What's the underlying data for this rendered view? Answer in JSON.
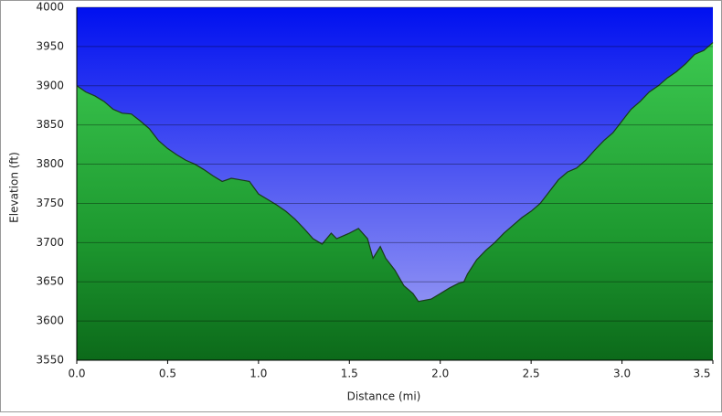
{
  "chart_data": {
    "type": "area",
    "xlabel": "Distance (mi)",
    "ylabel": "Elevation (ft)",
    "x": [
      0,
      0.05,
      0.1,
      0.15,
      0.2,
      0.25,
      0.3,
      0.35,
      0.4,
      0.45,
      0.5,
      0.55,
      0.6,
      0.65,
      0.7,
      0.75,
      0.8,
      0.85,
      0.9,
      0.95,
      1.0,
      1.05,
      1.1,
      1.15,
      1.2,
      1.25,
      1.3,
      1.35,
      1.4,
      1.43,
      1.5,
      1.55,
      1.6,
      1.63,
      1.67,
      1.7,
      1.75,
      1.8,
      1.85,
      1.88,
      1.95,
      2.0,
      2.05,
      2.1,
      2.13,
      2.15,
      2.2,
      2.25,
      2.3,
      2.35,
      2.4,
      2.45,
      2.5,
      2.55,
      2.6,
      2.65,
      2.7,
      2.75,
      2.8,
      2.85,
      2.9,
      2.95,
      3.0,
      3.05,
      3.1,
      3.15,
      3.2,
      3.25,
      3.3,
      3.35,
      3.4,
      3.45,
      3.5
    ],
    "values": [
      3900,
      3892,
      3887,
      3880,
      3870,
      3865,
      3864,
      3855,
      3845,
      3830,
      3820,
      3812,
      3805,
      3800,
      3793,
      3785,
      3778,
      3782,
      3780,
      3778,
      3762,
      3755,
      3748,
      3740,
      3730,
      3718,
      3705,
      3698,
      3712,
      3705,
      3712,
      3718,
      3705,
      3680,
      3695,
      3680,
      3665,
      3645,
      3635,
      3625,
      3628,
      3635,
      3642,
      3648,
      3650,
      3660,
      3678,
      3690,
      3700,
      3712,
      3722,
      3732,
      3740,
      3750,
      3765,
      3780,
      3790,
      3795,
      3805,
      3818,
      3830,
      3840,
      3855,
      3870,
      3880,
      3892,
      3900,
      3910,
      3918,
      3928,
      3940,
      3945,
      3955
    ],
    "color": "#22a83a",
    "xlim": [
      0,
      3.5
    ],
    "ylim": [
      3550,
      4000
    ],
    "xticks": [
      {
        "value": 0,
        "label": "0.0"
      },
      0.5,
      {
        "value": 1,
        "label": "1.0"
      },
      1.5,
      {
        "value": 2,
        "label": "2.0"
      },
      2.5,
      {
        "value": 3,
        "label": "3.0"
      },
      3.5
    ],
    "yticks": [
      3550,
      3600,
      3650,
      3700,
      3750,
      3800,
      3850,
      3900,
      3950,
      4000
    ],
    "grid": true
  }
}
